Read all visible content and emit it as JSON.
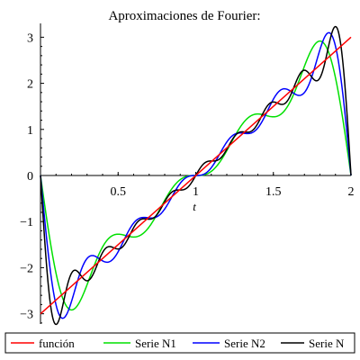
{
  "chart_data": {
    "type": "line",
    "title": "Aproximaciones de Fourier:",
    "xlabel": "t",
    "ylabel": "",
    "xlim": [
      0,
      2
    ],
    "ylim": [
      -3.3,
      3.3
    ],
    "x_ticks": [
      0.5,
      1,
      1.5,
      2
    ],
    "x_tick_labels": [
      "0.5",
      "1",
      "1.5",
      "2"
    ],
    "y_ticks": [
      -3,
      -2,
      -1,
      0,
      1,
      2,
      3
    ],
    "y_tick_labels": [
      "−3",
      "−2",
      "−1",
      "0",
      "1",
      "2",
      "3"
    ],
    "grid": false,
    "legend_position": "bottom",
    "series": [
      {
        "name": "función",
        "color": "#ff0000",
        "kind": "identity",
        "x": [
          0,
          2
        ],
        "y": [
          -3,
          3
        ]
      },
      {
        "name": "Serie N1",
        "color": "#00e000",
        "kind": "fourier",
        "harmonics": 4
      },
      {
        "name": "Serie N2",
        "color": "#0000ff",
        "kind": "fourier",
        "harmonics": 6
      },
      {
        "name": "Serie N",
        "color": "#000000",
        "kind": "fourier",
        "harmonics": 9
      }
    ]
  }
}
